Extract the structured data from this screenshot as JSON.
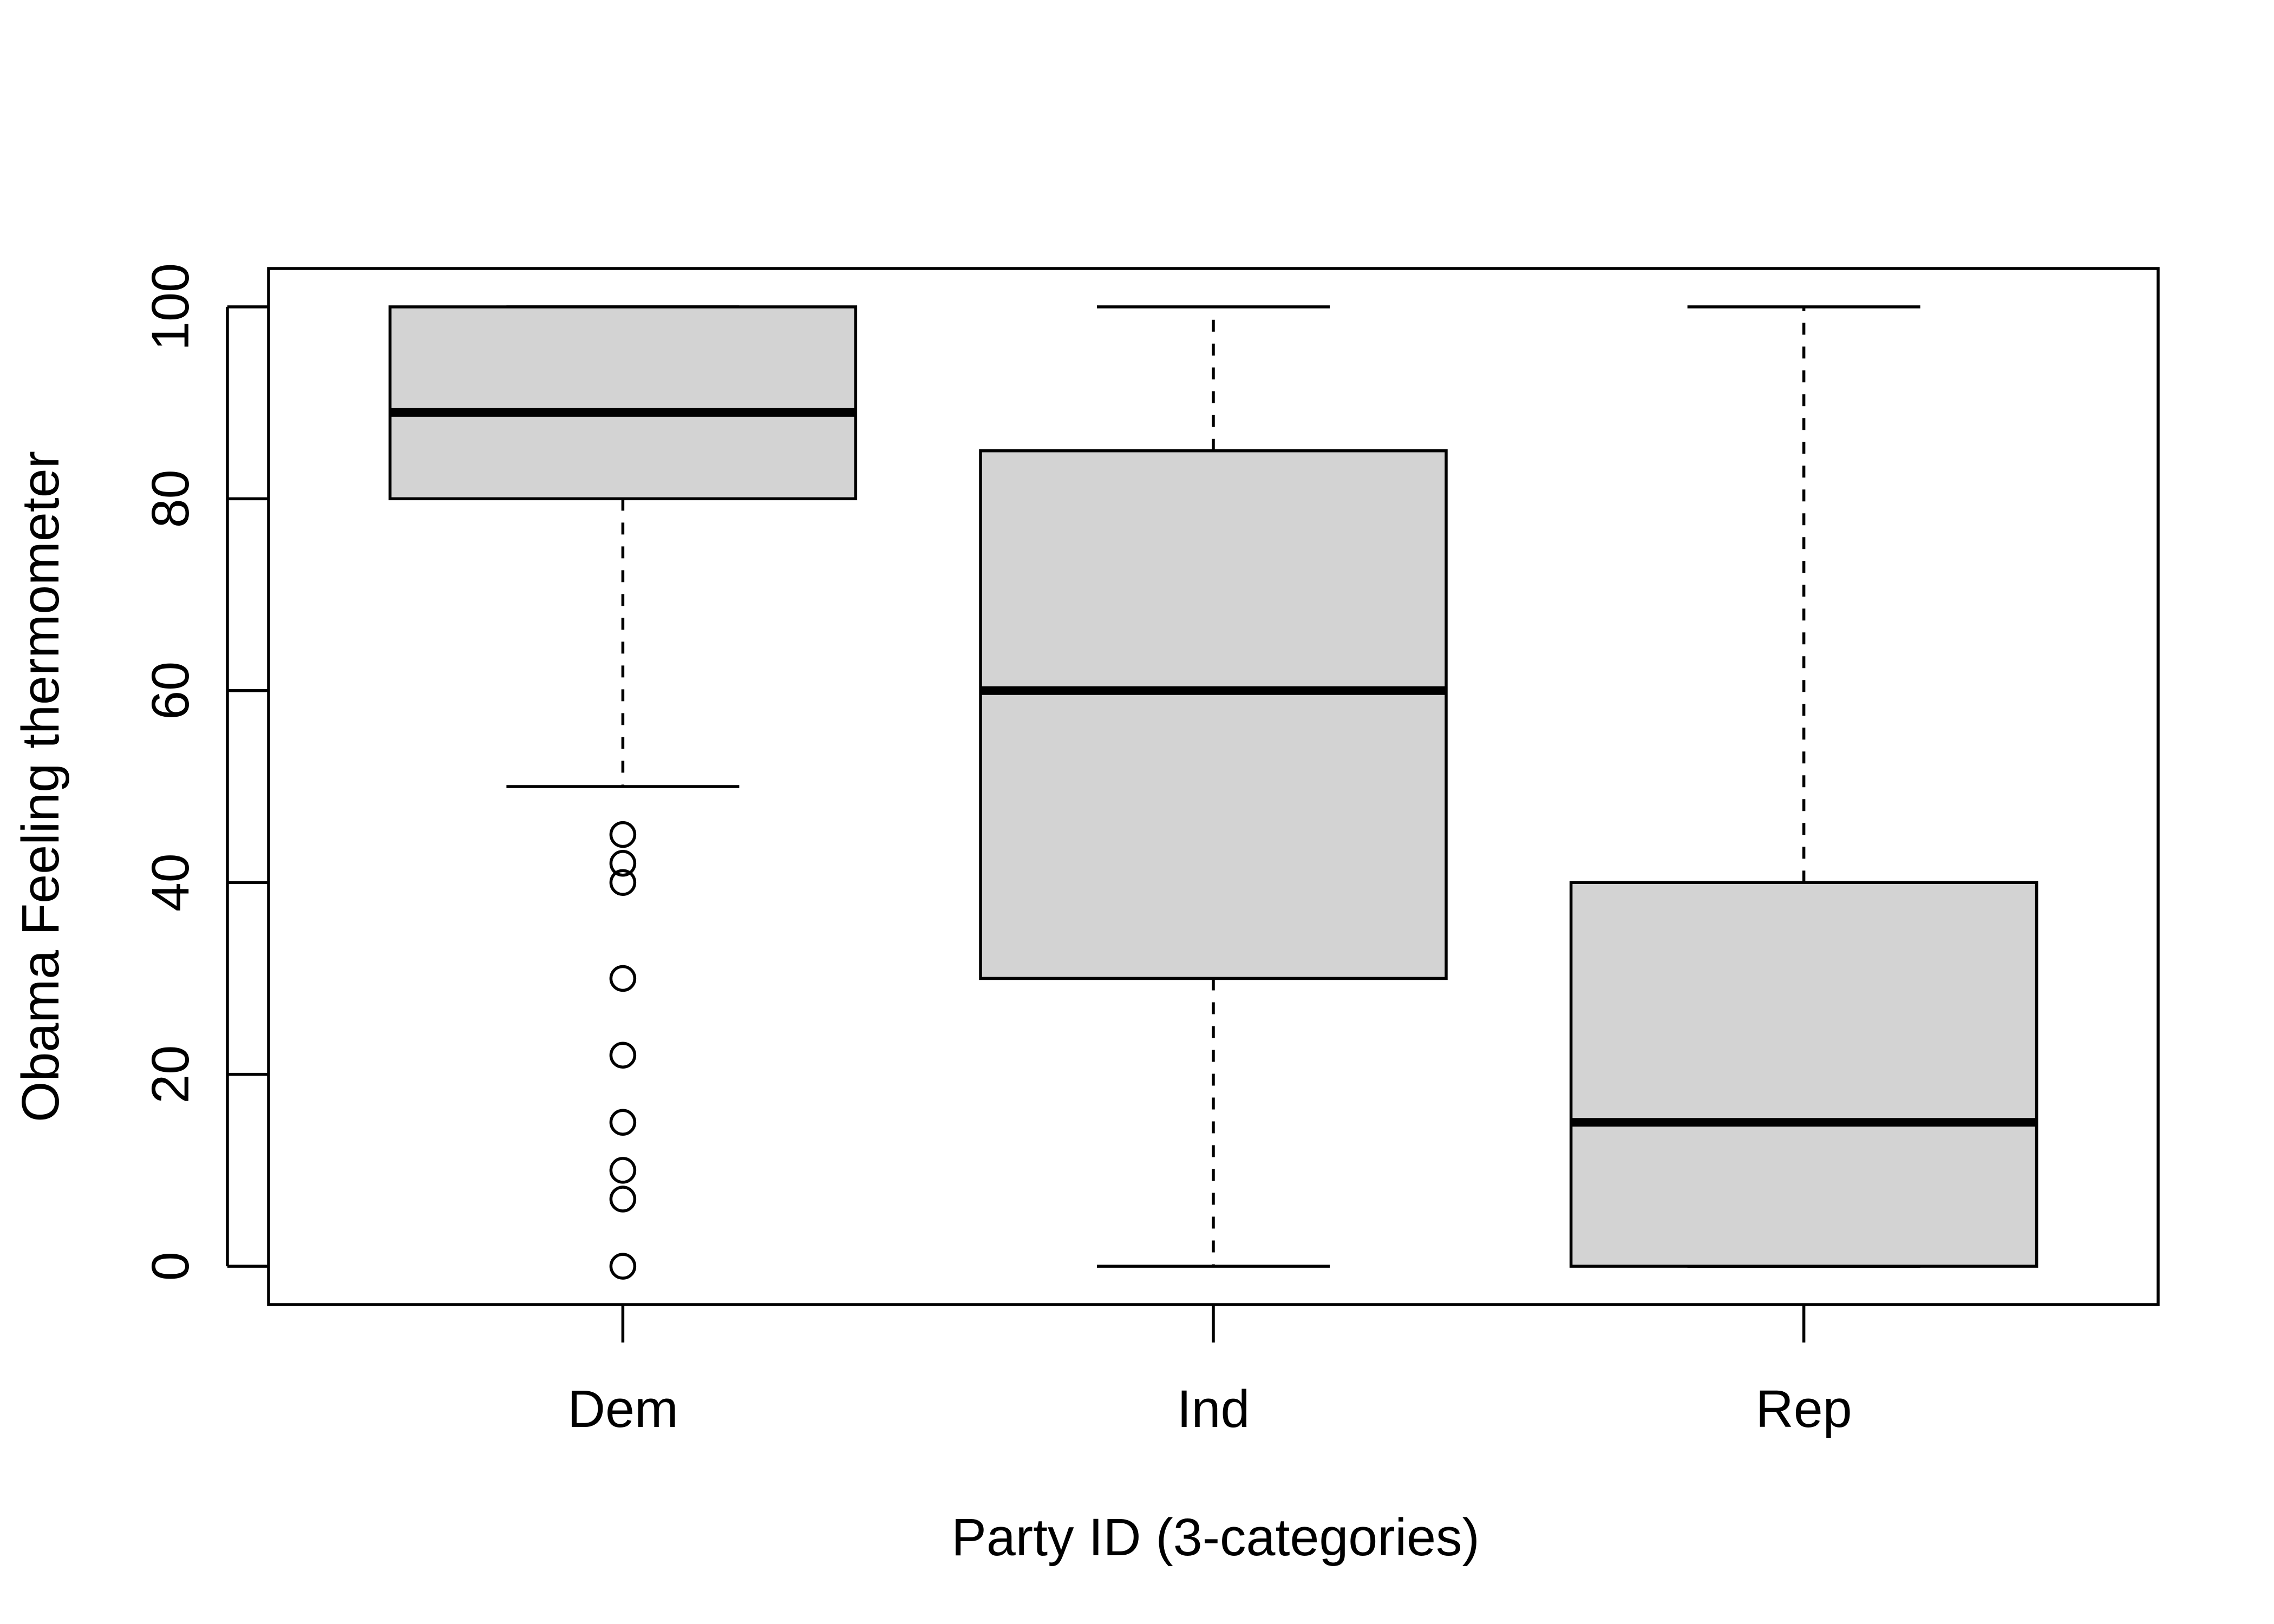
{
  "chart_data": {
    "type": "boxplot",
    "xlabel": "Party ID (3-categories)",
    "ylabel": "Obama Feeling thermometer",
    "categories": [
      "Dem",
      "Ind",
      "Rep"
    ],
    "ylim": [
      -4,
      104
    ],
    "y_ticks": [
      0,
      20,
      40,
      60,
      80,
      100
    ],
    "grid": false,
    "legend": "none",
    "box_fill": "#d3d3d3",
    "line_color": "#000000",
    "boxes": [
      {
        "category": "Dem",
        "whisker_low": 50,
        "q1": 80,
        "median": 89,
        "q3": 100,
        "whisker_high": 100,
        "outliers": [
          45,
          42,
          40,
          30,
          22,
          15,
          10,
          7,
          0
        ]
      },
      {
        "category": "Ind",
        "whisker_low": 0,
        "q1": 30,
        "median": 60,
        "q3": 85,
        "whisker_high": 100,
        "outliers": []
      },
      {
        "category": "Rep",
        "whisker_low": 0,
        "q1": 0,
        "median": 15,
        "q3": 40,
        "whisker_high": 100,
        "outliers": []
      }
    ]
  }
}
